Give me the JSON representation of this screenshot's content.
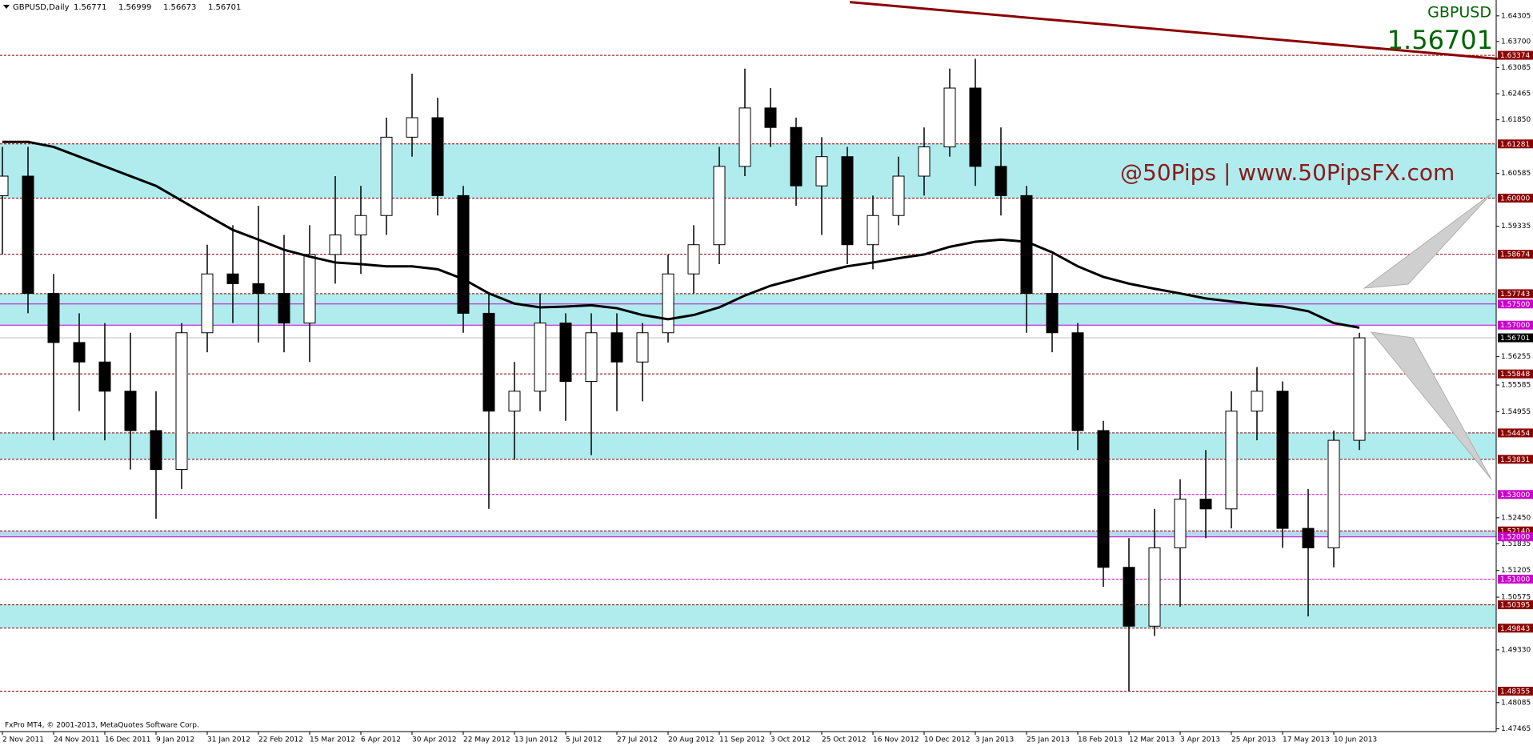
{
  "chart_data": {
    "type": "candlestick",
    "title": "GBPUSD,Daily",
    "header_values": [
      1.56771,
      1.56999,
      1.56673,
      1.56701
    ],
    "symbol": "GBPUSD",
    "price": 1.56701,
    "watermark": "@50Pips | www.50PipsFX.com",
    "copyright": "FxPro MT4, © 2001-2013, MetaQuotes Software Corp.",
    "categories": [
      "2 Nov 2011",
      null,
      "24 Nov 2011",
      null,
      "16 Dec 2011",
      null,
      "9 Jan 2012",
      null,
      "31 Jan 2012",
      null,
      "22 Feb 2012",
      null,
      "15 Mar 2012",
      null,
      "6 Apr 2012",
      null,
      "30 Apr 2012",
      null,
      "22 May 2012",
      null,
      "13 Jun 2012",
      null,
      "5 Jul 2012",
      null,
      "27 Jul 2012",
      null,
      "20 Aug 2012",
      null,
      "11 Sep 2012",
      null,
      "3 Oct 2012",
      null,
      "25 Oct 2012",
      null,
      "16 Nov 2012",
      null,
      "10 Dec 2012",
      null,
      "3 Jan 2013",
      null,
      "25 Jan 2013",
      null,
      "18 Feb 2013",
      null,
      "12 Mar 2013",
      null,
      "3 Apr 2013",
      null,
      "25 Apr 2013",
      null,
      "17 May 2013",
      null,
      "10 Jun 2013",
      null
    ],
    "open": [
      1.6006,
      1.6052,
      1.5775,
      1.5659,
      1.5613,
      1.5544,
      1.5451,
      1.5359,
      1.5682,
      1.5821,
      1.5798,
      1.5775,
      1.5705,
      1.5867,
      1.5913,
      1.5959,
      1.6144,
      1.619,
      1.6006,
      1.5728,
      1.5497,
      1.5544,
      1.5705,
      1.5567,
      1.5682,
      1.5613,
      1.5682,
      1.5821,
      1.589,
      1.6075,
      1.6213,
      1.6167,
      1.6029,
      1.6098,
      1.589,
      1.5959,
      1.6052,
      1.6121,
      1.626,
      1.6075,
      1.6006,
      1.5775,
      1.5682,
      1.5451,
      1.5128,
      1.4989,
      1.5174,
      1.5289,
      1.5266,
      1.5497,
      1.5544,
      1.522,
      1.5174,
      1.5428
    ],
    "high": [
      1.6121,
      1.6121,
      1.5821,
      1.5728,
      1.5705,
      1.5682,
      1.5544,
      1.5705,
      1.589,
      1.5936,
      1.5982,
      1.5913,
      1.5936,
      1.6052,
      1.6029,
      1.619,
      1.6294,
      1.6237,
      1.6029,
      1.5775,
      1.5613,
      1.5775,
      1.5728,
      1.5728,
      1.5728,
      1.5705,
      1.5867,
      1.5936,
      1.6121,
      1.6306,
      1.626,
      1.619,
      1.6144,
      1.6121,
      1.6006,
      1.6098,
      1.6167,
      1.6306,
      1.6329,
      1.6167,
      1.6029,
      1.5867,
      1.5705,
      1.5474,
      1.5197,
      1.5266,
      1.5336,
      1.5405,
      1.5544,
      1.5601,
      1.5567,
      1.5313,
      1.5451,
      1.5682
    ],
    "low": [
      1.5867,
      1.5728,
      1.5428,
      1.5497,
      1.5428,
      1.5359,
      1.5243,
      1.5313,
      1.5636,
      1.5705,
      1.5659,
      1.5636,
      1.5613,
      1.5798,
      1.5821,
      1.5913,
      1.6098,
      1.5959,
      1.5682,
      1.5266,
      1.5382,
      1.5497,
      1.5474,
      1.5393,
      1.5497,
      1.552,
      1.5659,
      1.5775,
      1.5844,
      1.6052,
      1.6121,
      1.5982,
      1.5913,
      1.5844,
      1.5832,
      1.5936,
      1.6006,
      1.6098,
      1.6029,
      1.5959,
      1.5682,
      1.5636,
      1.5405,
      1.5082,
      1.4835,
      1.4966,
      1.5035,
      1.5197,
      1.522,
      1.5428,
      1.5174,
      1.5012,
      1.5128,
      1.5405
    ],
    "close": [
      1.6052,
      1.5775,
      1.5659,
      1.5613,
      1.5544,
      1.5451,
      1.5359,
      1.5682,
      1.5821,
      1.5798,
      1.5775,
      1.5705,
      1.5867,
      1.5913,
      1.5959,
      1.6144,
      1.619,
      1.6006,
      1.5728,
      1.5497,
      1.5544,
      1.5705,
      1.5567,
      1.5682,
      1.5613,
      1.5682,
      1.5821,
      1.589,
      1.6075,
      1.6213,
      1.6167,
      1.6029,
      1.6098,
      1.589,
      1.5959,
      1.6052,
      1.6121,
      1.626,
      1.6075,
      1.6006,
      1.5775,
      1.5682,
      1.5451,
      1.5128,
      1.4989,
      1.5174,
      1.5289,
      1.5266,
      1.5497,
      1.5544,
      1.522,
      1.5174,
      1.5428,
      1.56701
    ],
    "moving_average": [
      1.6133,
      1.6133,
      1.6121,
      1.6098,
      1.6075,
      1.6052,
      1.6029,
      1.5994,
      1.5959,
      1.5925,
      1.5902,
      1.5878,
      1.5862,
      1.5848,
      1.5844,
      1.5839,
      1.5839,
      1.5832,
      1.5809,
      1.5775,
      1.5751,
      1.5742,
      1.5744,
      1.5747,
      1.574,
      1.5724,
      1.5714,
      1.5724,
      1.5742,
      1.577,
      1.5793,
      1.5809,
      1.5825,
      1.5839,
      1.5848,
      1.5858,
      1.5867,
      1.5885,
      1.5897,
      1.5902,
      1.5897,
      1.5872,
      1.5839,
      1.5814,
      1.5798,
      1.5786,
      1.5775,
      1.5763,
      1.5756,
      1.5749,
      1.5744,
      1.5733,
      1.5705,
      1.5694
    ],
    "ma_color": "#000000",
    "trendline": {
      "x": [
        33.1,
        58.4
      ],
      "y": [
        1.6463,
        1.6329
      ],
      "color": "#8b0000"
    },
    "ylim": [
      1.474,
      1.6468
    ],
    "yticks": [
      1.64305,
      {
        "value": 1.637,
        "label": "1.63700"
      },
      1.63085,
      1.62465,
      {
        "value": 1.6185,
        "label": "1.61850"
      },
      1.60585,
      1.59335,
      1.56255,
      1.55585,
      1.54955,
      {
        "value": 1.5245,
        "label": "1.52450"
      },
      1.51835,
      1.51205,
      1.50575,
      {
        "value": 1.4933,
        "label": "1.49330"
      },
      1.48085,
      1.47465
    ],
    "zones": [
      {
        "from": 1.6,
        "to": 1.61281,
        "color": "#b0ecee"
      },
      {
        "from": 1.57,
        "to": 1.57743,
        "color": "#b0ecee"
      },
      {
        "from": 1.53831,
        "to": 1.54454,
        "color": "#b0ecee"
      },
      {
        "from": 1.52,
        "to": 1.5214,
        "color": "#b8d8f0"
      },
      {
        "from": 1.49843,
        "to": 1.50395,
        "color": "#b0ecee"
      }
    ],
    "levels": [
      {
        "value": 1.63374,
        "color": "#8b0000",
        "style": "dashed"
      },
      {
        "value": 1.61281,
        "color": "#8b0000",
        "style": "dashed"
      },
      {
        "value": 1.6,
        "label": "1.60000",
        "color": "#8b0000",
        "style": "dashed"
      },
      {
        "value": 1.58674,
        "color": "#8b0000",
        "style": "dashed"
      },
      {
        "value": 1.57743,
        "color": "#8b0000",
        "style": "dashed"
      },
      {
        "value": 1.575,
        "label": "1.57500",
        "color": "#cc00cc",
        "style": "solid"
      },
      {
        "value": 1.57,
        "label": "1.57000",
        "color": "#cc00cc",
        "style": "solid"
      },
      {
        "value": 1.56701,
        "color": "#000000",
        "line_color": "#c0c0c0",
        "style": "solid"
      },
      {
        "value": 1.55848,
        "color": "#8b0000",
        "style": "dashed"
      },
      {
        "value": 1.54454,
        "color": "#8b0000",
        "style": "dashed"
      },
      {
        "value": 1.53831,
        "color": "#8b0000",
        "style": "dashed"
      },
      {
        "value": 1.53,
        "label": "1.53000",
        "color": "#cc00cc",
        "style": "dashed"
      },
      {
        "value": 1.5214,
        "label": "1.52140",
        "color": "#8b0000",
        "style": "dashed"
      },
      {
        "value": 1.52,
        "label": "1.52000",
        "color": "#cc00cc",
        "style": "solid"
      },
      {
        "value": 1.51,
        "label": "1.51000",
        "color": "#cc00cc",
        "style": "dashed"
      },
      {
        "value": 1.50395,
        "color": "#8b0000",
        "style": "dashed"
      },
      {
        "value": 1.49843,
        "color": "#8b0000",
        "style": "dashed"
      },
      {
        "value": 1.48355,
        "color": "#8b0000",
        "style": "dashed"
      }
    ]
  }
}
